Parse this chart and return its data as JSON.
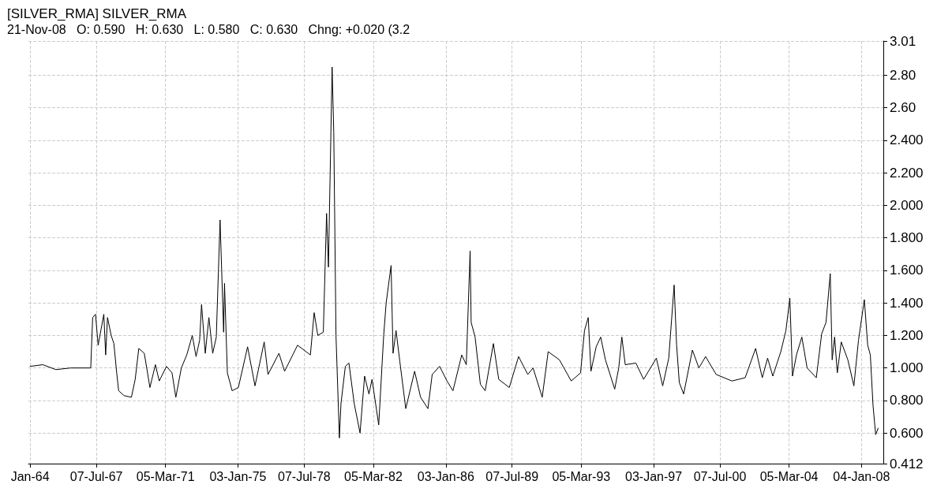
{
  "chart_data": {
    "type": "line",
    "title": "[SILVER_RMA] SILVER_RMA",
    "subtitle": "21-Nov-08   O: 0.590   H: 0.630   L: 0.580   C: 0.630   Chng: +0.020 (3.2",
    "x": [
      "1964-01-03",
      "1964-09-05",
      "1965-05-14",
      "1966-02-24",
      "1967-03-20",
      "1967-04-26",
      "1967-06-20",
      "1967-08-10",
      "1967-11-28",
      "1968-01-02",
      "1968-02-07",
      "1968-04-18",
      "1968-06-09",
      "1968-08-03",
      "1968-09-09",
      "1968-12-23",
      "1969-05-14",
      "1969-07-26",
      "1969-10-04",
      "1970-01-18",
      "1970-05-07",
      "1970-08-21",
      "1970-11-03",
      "1971-03-23",
      "1971-07-08",
      "1971-09-20",
      "1972-01-04",
      "1972-04-18",
      "1972-08-03",
      "1972-10-15",
      "1972-12-23",
      "1973-01-29",
      "1973-04-11",
      "1973-06-20",
      "1973-09-02",
      "1973-11-10",
      "1974-01-22",
      "1974-04-01",
      "1974-04-18",
      "1974-06-12",
      "1974-09-12",
      "1975-01-11",
      "1975-07-08",
      "1975-11-28",
      "1976-05-24",
      "1976-08-06",
      "1977-03-05",
      "1977-06-23",
      "1978-02-28",
      "1978-11-03",
      "1979-01-15",
      "1979-03-27",
      "1979-07-11",
      "1979-09-12",
      "1979-10-18",
      "1979-12-28",
      "1980-01-29",
      "1980-03-12",
      "1980-05-17",
      "1980-06-16",
      "1980-09-09",
      "1980-11-17",
      "1981-02-28",
      "1981-06-20",
      "1981-09-16",
      "1981-12-09",
      "1982-02-07",
      "1982-06-16",
      "1982-09-20",
      "1982-11-07",
      "1983-02-10",
      "1983-03-20",
      "1983-05-17",
      "1983-07-29",
      "1983-11-21",
      "1984-05-10",
      "1984-09-02",
      "1985-01-22",
      "1985-04-15",
      "1985-09-05",
      "1986-01-26",
      "1986-05-21",
      "1986-11-07",
      "1987-02-03",
      "1987-04-18",
      "1987-05-08",
      "1987-07-23",
      "1987-11-02",
      "1988-02-03",
      "1988-07-11",
      "1988-10-22",
      "1989-05-14",
      "1989-11-10",
      "1990-05-07",
      "1990-08-17",
      "1991-02-10",
      "1991-06-05",
      "1992-01-08",
      "1992-08-24",
      "1993-02-20",
      "1993-05-07",
      "1993-07-18",
      "1993-09-09",
      "1993-12-19",
      "1994-03-16",
      "1994-06-16",
      "1994-12-12",
      "1995-02-28",
      "1995-04-29",
      "1995-07-04",
      "1996-01-26",
      "1996-06-23",
      "1997-02-24",
      "1997-06-27",
      "1997-10-22",
      "1998-02-03",
      "1998-03-23",
      "1998-05-14",
      "1998-08-06",
      "1999-01-22",
      "1999-05-28",
      "1999-10-04",
      "2000-04-26",
      "2001-02-24",
      "2001-11-07",
      "2002-05-28",
      "2002-10-04",
      "2003-01-15",
      "2003-04-26",
      "2003-09-27",
      "2004-01-04",
      "2004-03-20",
      "2004-05-10",
      "2004-07-26",
      "2004-11-07",
      "2005-02-17",
      "2005-08-14",
      "2005-11-25",
      "2006-02-17",
      "2006-05-10",
      "2006-06-16",
      "2006-08-03",
      "2006-09-23",
      "2006-12-09",
      "2007-04-15",
      "2007-08-10",
      "2007-11-07",
      "2008-02-28",
      "2008-05-03",
      "2008-06-23",
      "2008-08-14",
      "2008-10-04",
      "2008-11-21"
    ],
    "series": [
      {
        "color": "#000000",
        "values": [
          1.01,
          1.02,
          0.99,
          1.0,
          1.0,
          1.31,
          1.33,
          1.14,
          1.33,
          1.08,
          1.31,
          1.2,
          1.15,
          0.97,
          0.86,
          0.83,
          0.82,
          0.93,
          1.12,
          1.09,
          0.88,
          1.02,
          0.92,
          1.01,
          0.97,
          0.82,
          1.0,
          1.08,
          1.2,
          1.07,
          1.17,
          1.39,
          1.09,
          1.31,
          1.09,
          1.19,
          1.91,
          1.22,
          1.52,
          0.97,
          0.86,
          0.88,
          1.13,
          0.89,
          1.16,
          0.96,
          1.09,
          0.98,
          1.14,
          1.08,
          1.34,
          1.2,
          1.22,
          1.95,
          1.62,
          2.85,
          2.45,
          1.2,
          0.57,
          0.78,
          1.01,
          1.03,
          0.78,
          0.6,
          0.95,
          0.84,
          0.93,
          0.65,
          1.2,
          1.4,
          1.63,
          1.09,
          1.23,
          1.04,
          0.75,
          0.98,
          0.82,
          0.75,
          0.96,
          1.01,
          0.92,
          0.86,
          1.08,
          1.02,
          1.72,
          1.28,
          1.19,
          0.9,
          0.86,
          1.15,
          0.93,
          0.88,
          1.07,
          0.96,
          1.0,
          0.82,
          1.1,
          1.05,
          0.92,
          0.97,
          1.23,
          1.31,
          0.98,
          1.13,
          1.19,
          1.05,
          0.87,
          1.0,
          1.19,
          1.02,
          1.03,
          0.93,
          1.06,
          0.89,
          1.06,
          1.51,
          1.14,
          0.91,
          0.84,
          1.11,
          1.0,
          1.07,
          0.96,
          0.92,
          0.94,
          1.12,
          0.94,
          1.06,
          0.95,
          1.1,
          1.23,
          1.43,
          0.95,
          1.08,
          1.19,
          1.0,
          0.94,
          1.21,
          1.28,
          1.58,
          1.05,
          1.19,
          0.97,
          1.16,
          1.05,
          0.89,
          1.17,
          1.42,
          1.14,
          1.08,
          0.77,
          0.59,
          0.63
        ]
      }
    ],
    "xlim": [
      "1963-12-01",
      "2009-03-01"
    ],
    "xticks": [
      {
        "value": "1964-01-03",
        "label": "Jan-64"
      },
      {
        "value": "1967-07-07",
        "label": "07-Jul-67"
      },
      {
        "value": "1971-03-05",
        "label": "05-Mar-71"
      },
      {
        "value": "1975-01-03",
        "label": "03-Jan-75"
      },
      {
        "value": "1978-07-07",
        "label": "07-Jul-78"
      },
      {
        "value": "1982-03-05",
        "label": "05-Mar-82"
      },
      {
        "value": "1986-01-03",
        "label": "03-Jan-86"
      },
      {
        "value": "1989-07-07",
        "label": "07-Jul-89"
      },
      {
        "value": "1993-03-05",
        "label": "05-Mar-93"
      },
      {
        "value": "1997-01-03",
        "label": "03-Jan-97"
      },
      {
        "value": "2000-07-07",
        "label": "07-Jul-00"
      },
      {
        "value": "2004-03-05",
        "label": "05-Mar-04"
      },
      {
        "value": "2008-01-04",
        "label": "04-Jan-08"
      }
    ],
    "ylim": [
      0.412,
      3.01
    ],
    "yticks": [
      0.412,
      {
        "value": 0.6,
        "label": "0.600"
      },
      {
        "value": 0.8,
        "label": "0.800"
      },
      {
        "value": 1.0,
        "label": "1.000"
      },
      {
        "value": 1.2,
        "label": "1.200"
      },
      {
        "value": 1.4,
        "label": "1.400"
      },
      {
        "value": 1.6,
        "label": "1.600"
      },
      {
        "value": 1.8,
        "label": "1.800"
      },
      {
        "value": 2.0,
        "label": "2.000"
      },
      {
        "value": 2.2,
        "label": "2.200"
      },
      {
        "value": 2.4,
        "label": "2.400"
      },
      {
        "value": 2.6,
        "label": "2.60"
      },
      {
        "value": 2.8,
        "label": "2.80"
      },
      3.01
    ],
    "grid": true,
    "marker": "none",
    "line_style": "solid"
  }
}
